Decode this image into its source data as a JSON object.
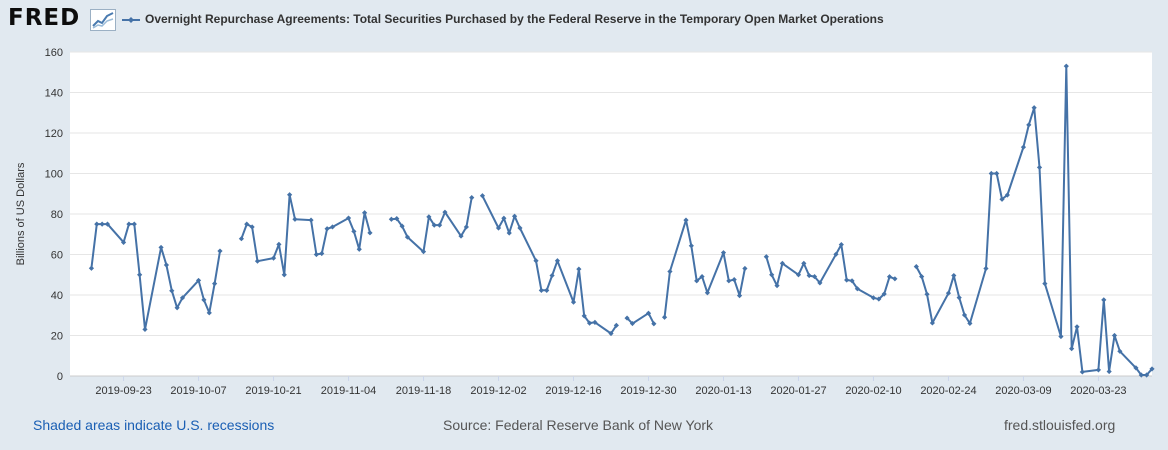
{
  "logo": {
    "text": "FRED",
    "icon": "line-graph-icon"
  },
  "chart_data": {
    "type": "line",
    "title": "Overnight Repurchase Agreements: Total Securities Purchased by the Federal Reserve in the Temporary Open Market Operations",
    "ylabel": "Billions of US Dollars",
    "xlabel": "",
    "ylim": [
      0,
      160
    ],
    "yticks": [
      0,
      20,
      40,
      60,
      80,
      100,
      120,
      140,
      160
    ],
    "xlim": [
      "2019-09-13",
      "2020-04-02"
    ],
    "xticks": [
      "2019-09-23",
      "2019-10-07",
      "2019-10-21",
      "2019-11-04",
      "2019-11-18",
      "2019-12-02",
      "2019-12-16",
      "2019-12-30",
      "2020-01-13",
      "2020-01-27",
      "2020-02-10",
      "2020-02-24",
      "2020-03-09",
      "2020-03-23"
    ],
    "grid": true,
    "line_color": "#4572a7",
    "series": [
      {
        "name": "Overnight Repurchase Agreements: Total Securities Purchased by the Federal Reserve in the Temporary Open Market Operations",
        "segments": [
          [
            [
              "2019-09-17",
              53.2
            ],
            [
              "2019-09-18",
              75
            ],
            [
              "2019-09-19",
              75
            ],
            [
              "2019-09-20",
              75
            ],
            [
              "2019-09-23",
              66
            ],
            [
              "2019-09-24",
              75
            ],
            [
              "2019-09-25",
              75
            ],
            [
              "2019-09-26",
              50
            ],
            [
              "2019-09-27",
              23
            ],
            [
              "2019-09-30",
              63.5
            ],
            [
              "2019-10-01",
              54.8
            ],
            [
              "2019-10-02",
              42.1
            ],
            [
              "2019-10-03",
              33.7
            ],
            [
              "2019-10-04",
              38.6
            ],
            [
              "2019-10-07",
              47.2
            ],
            [
              "2019-10-08",
              37.6
            ],
            [
              "2019-10-09",
              31.2
            ],
            [
              "2019-10-10",
              45.6
            ],
            [
              "2019-10-11",
              61.7
            ]
          ],
          [
            [
              "2019-10-15",
              67.8
            ],
            [
              "2019-10-16",
              75
            ],
            [
              "2019-10-17",
              73.6
            ],
            [
              "2019-10-18",
              56.7
            ],
            [
              "2019-10-21",
              58.2
            ],
            [
              "2019-10-22",
              65
            ],
            [
              "2019-10-23",
              50
            ],
            [
              "2019-10-24",
              89.5
            ],
            [
              "2019-10-25",
              77.4
            ],
            [
              "2019-10-28",
              77
            ],
            [
              "2019-10-29",
              60
            ],
            [
              "2019-10-30",
              60.5
            ],
            [
              "2019-10-31",
              72.7
            ],
            [
              "2019-11-01",
              73.6
            ],
            [
              "2019-11-04",
              78
            ],
            [
              "2019-11-05",
              71.4
            ],
            [
              "2019-11-06",
              62.6
            ],
            [
              "2019-11-07",
              80.6
            ],
            [
              "2019-11-08",
              70.7
            ]
          ],
          [
            [
              "2019-11-12",
              77.4
            ],
            [
              "2019-11-13",
              77.7
            ],
            [
              "2019-11-14",
              74
            ],
            [
              "2019-11-15",
              68.6
            ],
            [
              "2019-11-18",
              61.4
            ],
            [
              "2019-11-19",
              78.6
            ],
            [
              "2019-11-20",
              74.5
            ],
            [
              "2019-11-21",
              74.5
            ],
            [
              "2019-11-22",
              80.9
            ],
            [
              "2019-11-25",
              69.1
            ],
            [
              "2019-11-26",
              73.6
            ],
            [
              "2019-11-27",
              88.1
            ]
          ],
          [
            [
              "2019-11-29",
              89
            ],
            [
              "2019-12-02",
              73.1
            ],
            [
              "2019-12-03",
              77.9
            ],
            [
              "2019-12-04",
              70.6
            ],
            [
              "2019-12-05",
              78.9
            ],
            [
              "2019-12-06",
              73.1
            ],
            [
              "2019-12-09",
              56.9
            ],
            [
              "2019-12-10",
              42.3
            ],
            [
              "2019-12-11",
              42.3
            ],
            [
              "2019-12-12",
              49.6
            ],
            [
              "2019-12-13",
              56.9
            ],
            [
              "2019-12-16",
              36.5
            ],
            [
              "2019-12-17",
              52.8
            ],
            [
              "2019-12-18",
              29.7
            ],
            [
              "2019-12-19",
              26.1
            ],
            [
              "2019-12-20",
              26.5
            ],
            [
              "2019-12-23",
              21
            ],
            [
              "2019-12-24",
              25
            ]
          ],
          [
            [
              "2019-12-26",
              28.6
            ],
            [
              "2019-12-27",
              25.9
            ],
            [
              "2019-12-30",
              31
            ],
            [
              "2019-12-31",
              25.8
            ]
          ],
          [
            [
              "2020-01-02",
              29
            ],
            [
              "2020-01-03",
              51.6
            ],
            [
              "2020-01-06",
              77
            ],
            [
              "2020-01-07",
              64.3
            ],
            [
              "2020-01-08",
              47
            ],
            [
              "2020-01-09",
              49.1
            ],
            [
              "2020-01-10",
              41.1
            ],
            [
              "2020-01-13",
              60.9
            ],
            [
              "2020-01-14",
              47
            ],
            [
              "2020-01-15",
              47.6
            ],
            [
              "2020-01-16",
              39.7
            ],
            [
              "2020-01-17",
              53.1
            ]
          ],
          [
            [
              "2020-01-21",
              58.9
            ],
            [
              "2020-01-22",
              50
            ],
            [
              "2020-01-23",
              44.6
            ],
            [
              "2020-01-24",
              55.6
            ],
            [
              "2020-01-27",
              50
            ],
            [
              "2020-01-28",
              55.6
            ],
            [
              "2020-01-29",
              49.6
            ],
            [
              "2020-01-30",
              49.1
            ],
            [
              "2020-01-31",
              46
            ],
            [
              "2020-02-03",
              60.1
            ],
            [
              "2020-02-04",
              64.9
            ],
            [
              "2020-02-05",
              47.4
            ],
            [
              "2020-02-06",
              47
            ],
            [
              "2020-02-07",
              43.1
            ],
            [
              "2020-02-10",
              38.6
            ],
            [
              "2020-02-11",
              38
            ],
            [
              "2020-02-12",
              40.5
            ],
            [
              "2020-02-13",
              49
            ],
            [
              "2020-02-14",
              48
            ]
          ],
          [
            [
              "2020-02-18",
              54
            ],
            [
              "2020-02-19",
              49.1
            ],
            [
              "2020-02-20",
              40.4
            ],
            [
              "2020-02-21",
              26.2
            ],
            [
              "2020-02-24",
              40.9
            ],
            [
              "2020-02-25",
              49.6
            ],
            [
              "2020-02-26",
              38.7
            ],
            [
              "2020-02-27",
              30.1
            ],
            [
              "2020-02-28",
              26
            ],
            [
              "2020-03-02",
              53.1
            ],
            [
              "2020-03-03",
              100
            ],
            [
              "2020-03-04",
              100
            ],
            [
              "2020-03-05",
              87.3
            ],
            [
              "2020-03-06",
              89.4
            ],
            [
              "2020-03-09",
              113
            ],
            [
              "2020-03-10",
              124
            ],
            [
              "2020-03-11",
              132.5
            ],
            [
              "2020-03-12",
              103
            ],
            [
              "2020-03-13",
              45.6
            ],
            [
              "2020-03-16",
              19.5
            ],
            [
              "2020-03-17",
              153
            ],
            [
              "2020-03-18",
              13.5
            ],
            [
              "2020-03-19",
              24.3
            ],
            [
              "2020-03-20",
              2
            ],
            [
              "2020-03-23",
              3
            ],
            [
              "2020-03-24",
              37.6
            ],
            [
              "2020-03-25",
              2.2
            ],
            [
              "2020-03-26",
              20
            ],
            [
              "2020-03-27",
              12.2
            ],
            [
              "2020-03-30",
              4
            ],
            [
              "2020-03-31",
              0.5
            ],
            [
              "2020-04-01",
              0.5
            ],
            [
              "2020-04-02",
              3.5
            ]
          ]
        ]
      }
    ]
  },
  "footer": {
    "left": "Shaded areas indicate U.S. recessions",
    "source": "Source: Federal Reserve Bank of New York",
    "site": "fred.stlouisfed.org"
  }
}
